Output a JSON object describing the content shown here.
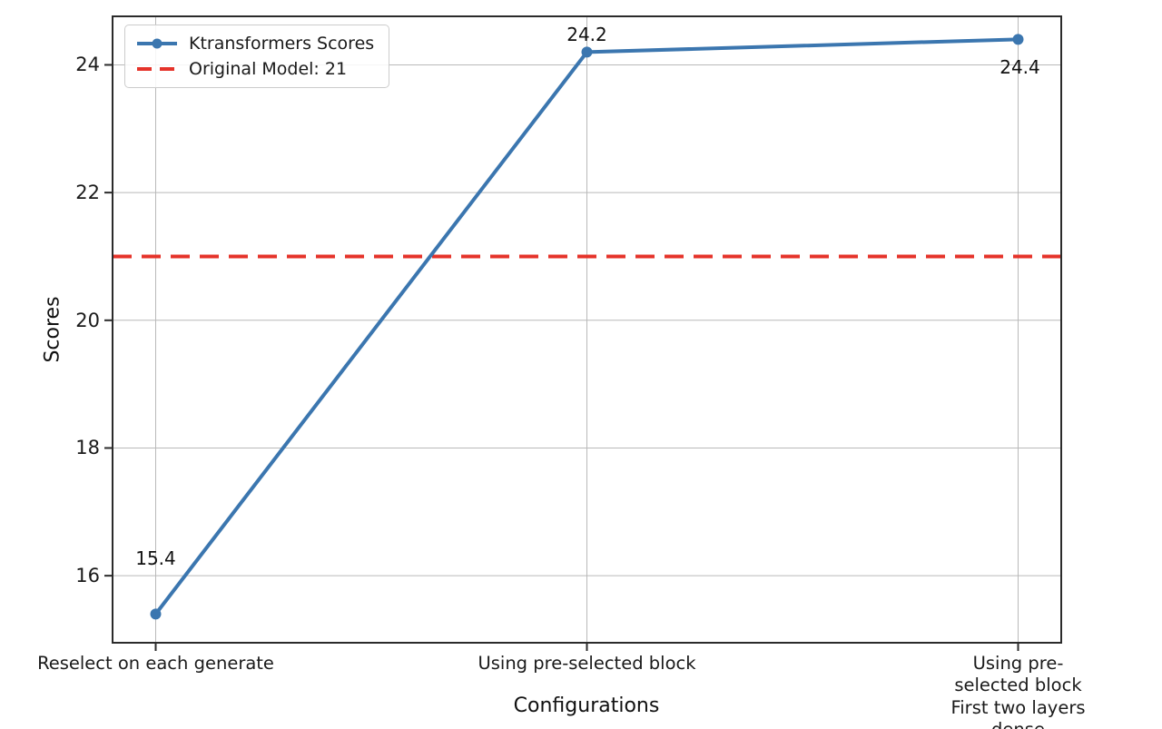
{
  "chart_data": {
    "type": "line",
    "title": "",
    "xlabel": "Configurations",
    "ylabel": "Scores",
    "categories": [
      "Reselect on each generate",
      "Using pre-selected block",
      "Using pre-selected block\nFirst two layers dense"
    ],
    "series": [
      {
        "name": "Ktransformers Scores",
        "values": [
          15.4,
          24.2,
          24.4
        ],
        "point_labels": [
          "15.4",
          "24.2",
          "24.4"
        ],
        "label_offsets": [
          [
            0,
            -61
          ],
          [
            0,
            -19
          ],
          [
            2,
            31
          ]
        ],
        "color": "#3b76af"
      }
    ],
    "reference_line": {
      "name": "Original Model: 21",
      "value": 21,
      "color": "#e5332a"
    },
    "yticks": [
      16,
      18,
      20,
      22,
      24
    ],
    "ylim": [
      14.95,
      24.76
    ],
    "xlim": [
      -0.1,
      2.1
    ],
    "grid": true,
    "legend_position": "upper-left"
  },
  "colors": {
    "grid": "#b9b9b9",
    "spine": "#2b2b2b",
    "tick_text": "#1a1a1a"
  }
}
